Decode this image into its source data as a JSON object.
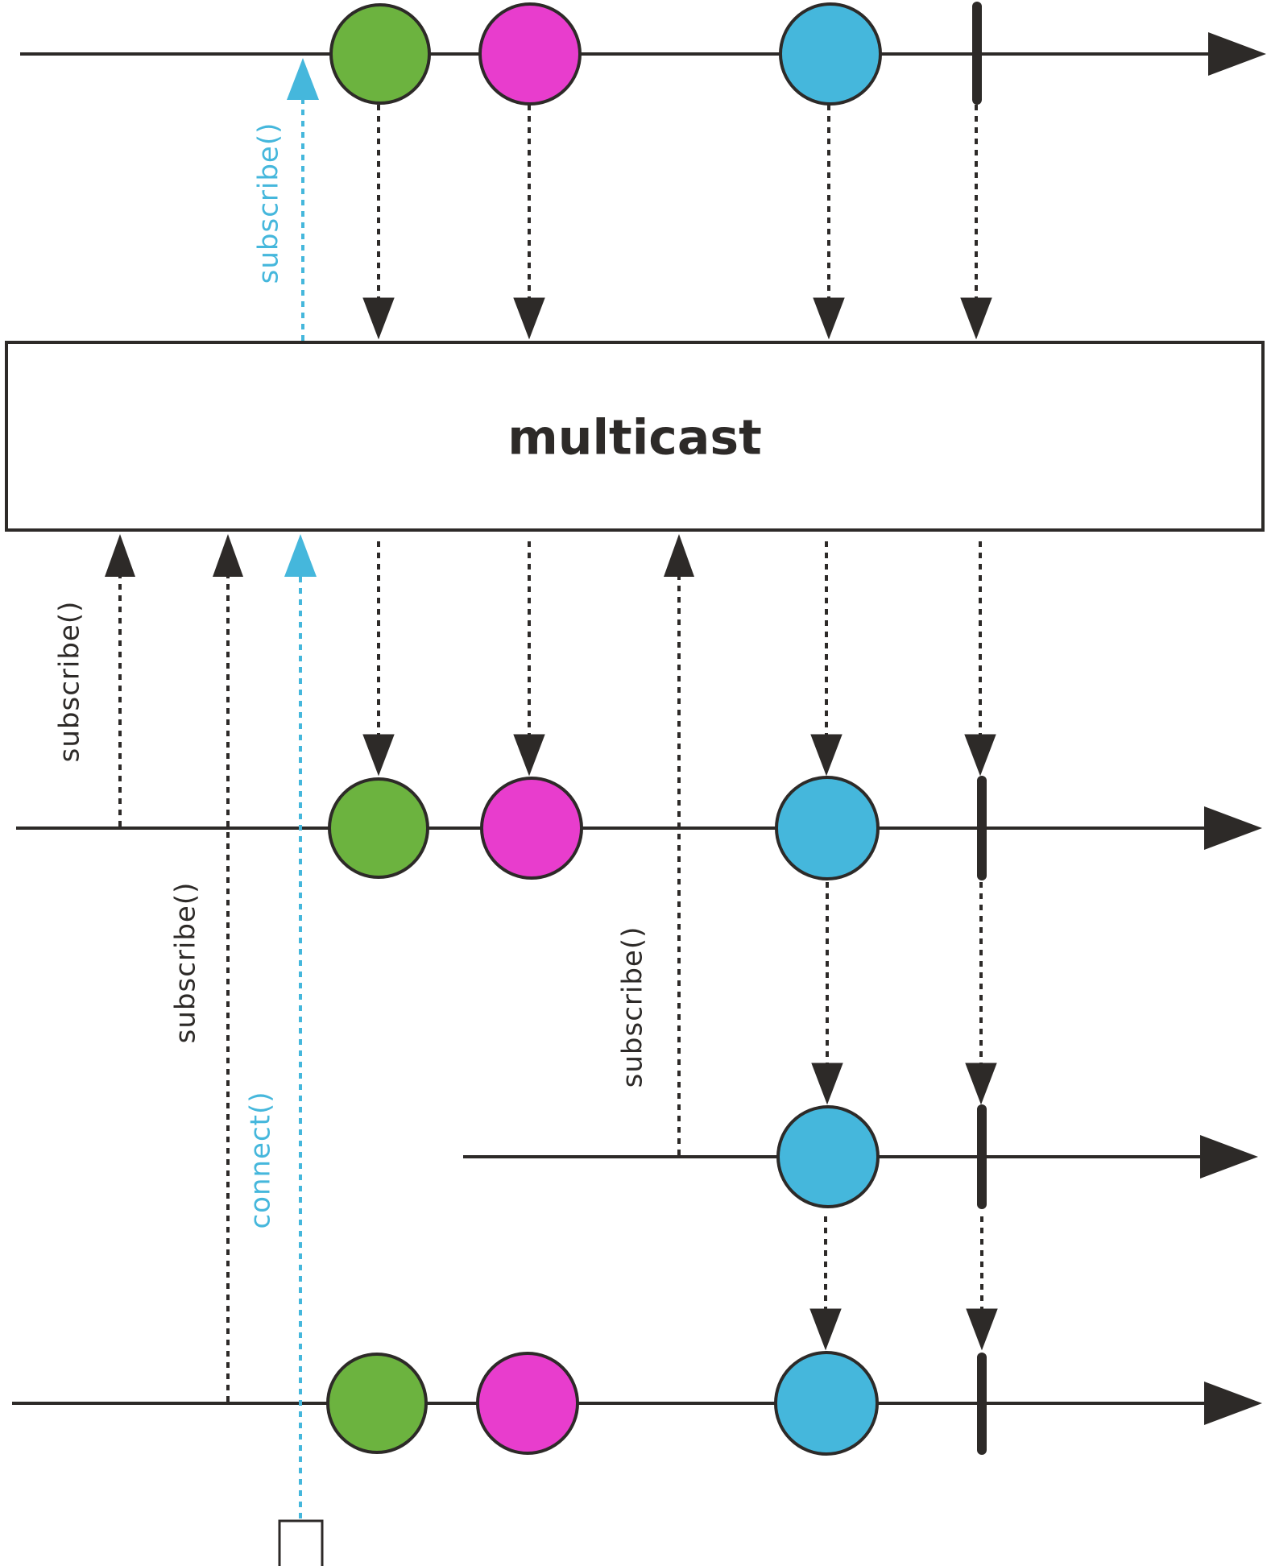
{
  "operator": {
    "label": "multicast"
  },
  "colors": {
    "ink": "#2d2a28",
    "green": "#6cb33f",
    "magenta": "#e83dcd",
    "blue": "#45b7dc",
    "accent": "#45b7dc"
  },
  "source": {
    "marbles": [
      "green",
      "magenta",
      "blue"
    ],
    "completes": true,
    "subscribe_label": "subscribe()"
  },
  "subscribers": [
    {
      "subscribe_label": "subscribe()",
      "marbles": [
        "green",
        "magenta",
        "blue"
      ],
      "completes": true
    },
    {
      "subscribe_label": "subscribe()",
      "marbles": [
        "blue"
      ],
      "completes": true
    },
    {
      "subscribe_label": "subscribe()",
      "marbles": [
        "green",
        "magenta",
        "blue"
      ],
      "completes": true
    }
  ],
  "connect": {
    "label": "connect()",
    "icon": "square-icon"
  }
}
